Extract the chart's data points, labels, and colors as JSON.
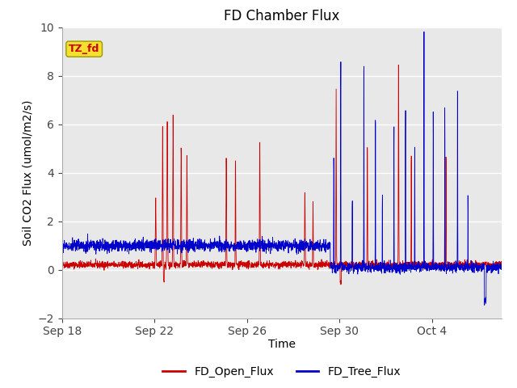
{
  "title": "FD Chamber Flux",
  "xlabel": "Time",
  "ylabel": "Soil CO2 Flux (umol/m2/s)",
  "ylim": [
    -2,
    10
  ],
  "yticks": [
    -2,
    0,
    2,
    4,
    6,
    8,
    10
  ],
  "xlim_days": [
    0,
    19
  ],
  "x_tick_labels": [
    "Sep 18",
    "Sep 22",
    "Sep 26",
    "Sep 30",
    "Oct 4"
  ],
  "x_tick_positions": [
    0,
    4,
    8,
    12,
    16
  ],
  "fig_bg_color": "#ffffff",
  "plot_bg_color": "#e8e8e8",
  "open_flux_color": "#cc0000",
  "tree_flux_color": "#0000cc",
  "label_box_facecolor": "#f5e030",
  "label_box_edgecolor": "#999900",
  "label_text_color": "#cc0000",
  "label_text": "TZ_fd",
  "legend_labels": [
    "FD_Open_Flux",
    "FD_Tree_Flux"
  ],
  "grid_color": "#ffffff",
  "title_fontsize": 12,
  "axis_fontsize": 10,
  "tick_fontsize": 10,
  "legend_fontsize": 10
}
